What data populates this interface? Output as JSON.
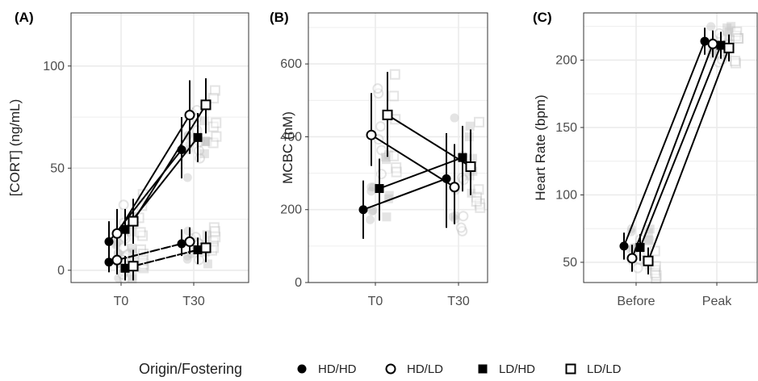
{
  "colors": {
    "grid": "#ebebeb",
    "raw": "#c4c4c4",
    "ink": "#000000",
    "frame": "#333333"
  },
  "legend": {
    "title": "Origin/Fostering",
    "items": [
      {
        "label": "HD/HD",
        "marker": "filled-circle"
      },
      {
        "label": "HD/LD",
        "marker": "open-circle"
      },
      {
        "label": "LD/HD",
        "marker": "filled-square"
      },
      {
        "label": "LD/LD",
        "marker": "open-square"
      }
    ]
  },
  "chart_data": [
    {
      "type": "line",
      "tag": "(A)",
      "ylabel": "[CORT] (ng/mL)",
      "categories": [
        "T0",
        "T30"
      ],
      "yticks": [
        0,
        50,
        100
      ],
      "ylim": [
        -6,
        126
      ],
      "grid": true,
      "series": [
        {
          "name": "HD/HD",
          "group": "solid",
          "values": [
            14,
            59
          ],
          "err_low": [
            6,
            45
          ],
          "err_high": [
            24,
            75
          ]
        },
        {
          "name": "HD/LD",
          "group": "solid",
          "values": [
            18,
            76
          ],
          "err_low": [
            8,
            57
          ],
          "err_high": [
            30,
            93
          ]
        },
        {
          "name": "LD/HD",
          "group": "solid",
          "values": [
            20,
            65
          ],
          "err_low": [
            12,
            53
          ],
          "err_high": [
            30,
            77
          ]
        },
        {
          "name": "LD/LD",
          "group": "solid",
          "values": [
            24,
            81
          ],
          "err_low": [
            13,
            67
          ],
          "err_high": [
            35,
            94
          ]
        },
        {
          "name": "HD/HD",
          "group": "dashed",
          "values": [
            4,
            13
          ],
          "err_low": [
            -1,
            7
          ],
          "err_high": [
            14,
            20
          ]
        },
        {
          "name": "HD/LD",
          "group": "dashed",
          "values": [
            5,
            14
          ],
          "err_low": [
            -2,
            8
          ],
          "err_high": [
            13,
            21
          ]
        },
        {
          "name": "LD/HD",
          "group": "dashed",
          "values": [
            1,
            10
          ],
          "err_low": [
            -5,
            3
          ],
          "err_high": [
            7,
            16
          ]
        },
        {
          "name": "LD/LD",
          "group": "dashed",
          "values": [
            2,
            11
          ],
          "err_low": [
            -5,
            4
          ],
          "err_high": [
            10,
            19
          ]
        }
      ]
    },
    {
      "type": "line",
      "tag": "(B)",
      "ylabel": "MCBC (nM)",
      "categories": [
        "T0",
        "T30"
      ],
      "yticks": [
        0,
        200,
        400,
        600
      ],
      "ylim": [
        0,
        740
      ],
      "grid": true,
      "series": [
        {
          "name": "HD/HD",
          "values": [
            200,
            285
          ],
          "err_low": [
            120,
            150
          ],
          "err_high": [
            280,
            410
          ]
        },
        {
          "name": "HD/LD",
          "values": [
            405,
            262
          ],
          "err_low": [
            320,
            160
          ],
          "err_high": [
            520,
            380
          ]
        },
        {
          "name": "LD/HD",
          "values": [
            258,
            343
          ],
          "err_low": [
            170,
            250
          ],
          "err_high": [
            340,
            430
          ]
        },
        {
          "name": "LD/LD",
          "values": [
            460,
            318
          ],
          "err_low": [
            345,
            240
          ],
          "err_high": [
            578,
            420
          ]
        }
      ]
    },
    {
      "type": "line",
      "tag": "(C)",
      "ylabel": "Heart Rate (bpm)",
      "categories": [
        "Before",
        "Peak"
      ],
      "yticks": [
        50,
        100,
        150,
        200
      ],
      "ylim": [
        35,
        235
      ],
      "grid": true,
      "series": [
        {
          "name": "HD/HD",
          "values": [
            62,
            214
          ],
          "err_low": [
            52,
            204
          ],
          "err_high": [
            72,
            224
          ]
        },
        {
          "name": "HD/LD",
          "values": [
            53,
            212
          ],
          "err_low": [
            43,
            202
          ],
          "err_high": [
            63,
            222
          ]
        },
        {
          "name": "LD/HD",
          "values": [
            61,
            211
          ],
          "err_low": [
            51,
            201
          ],
          "err_high": [
            71,
            221
          ]
        },
        {
          "name": "LD/LD",
          "values": [
            51,
            209
          ],
          "err_low": [
            41,
            199
          ],
          "err_high": [
            61,
            219
          ]
        }
      ]
    }
  ]
}
